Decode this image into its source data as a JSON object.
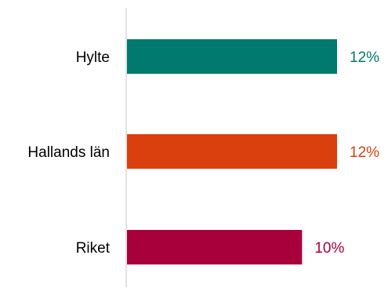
{
  "chart_data": {
    "type": "bar",
    "orientation": "horizontal",
    "categories": [
      "Hylte",
      "Hallands län",
      "Riket"
    ],
    "values": [
      12,
      12,
      10
    ],
    "value_labels": [
      "12%",
      "12%",
      "10%"
    ],
    "colors": [
      "#007a6e",
      "#d9400e",
      "#a8003a"
    ],
    "axis_color": "#d9d9d9",
    "xlim": [
      0,
      12
    ],
    "grid": false,
    "legend": "none"
  }
}
